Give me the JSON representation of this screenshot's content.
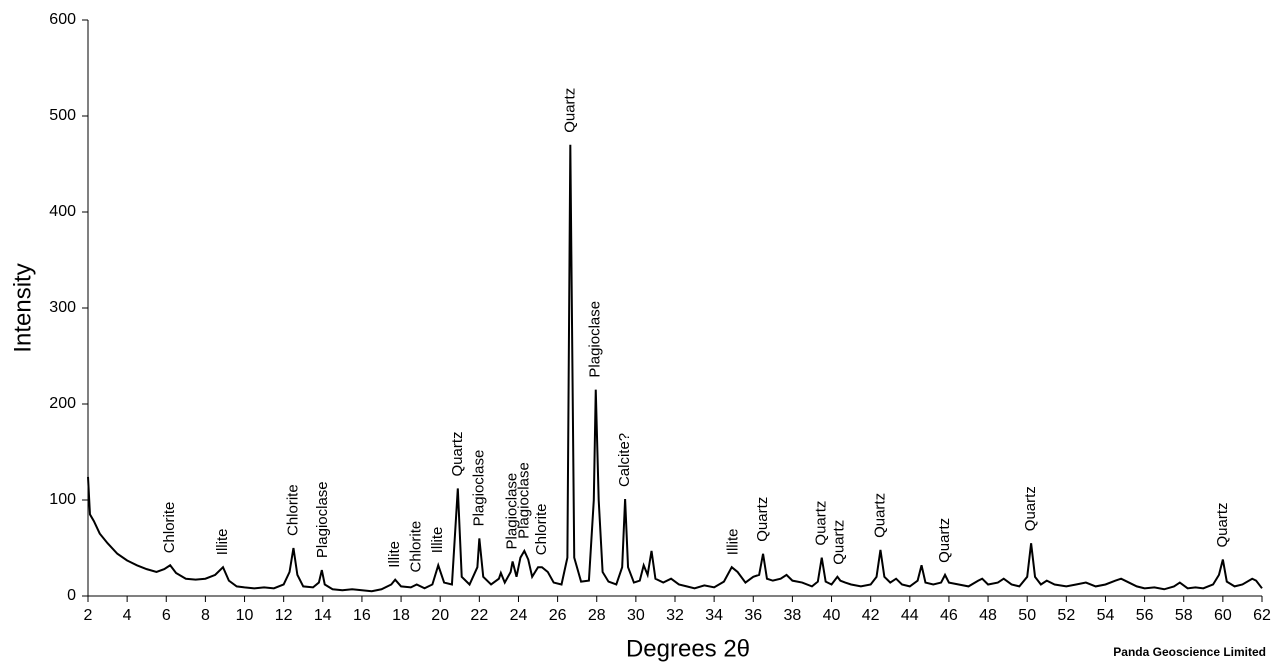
{
  "chart_data": {
    "type": "line",
    "xlabel": "Degrees 2θ",
    "ylabel": "Intensity",
    "credit": "Panda Geoscience Limited",
    "xlim": [
      2,
      62
    ],
    "ylim": [
      0,
      600
    ],
    "xticks": [
      2,
      4,
      6,
      8,
      10,
      12,
      14,
      16,
      18,
      20,
      22,
      24,
      26,
      28,
      30,
      32,
      34,
      36,
      38,
      40,
      42,
      44,
      46,
      48,
      50,
      52,
      54,
      56,
      58,
      60,
      62
    ],
    "yticks": [
      0,
      100,
      200,
      300,
      400,
      500,
      600
    ],
    "series": [
      {
        "color": "#000000",
        "x": [
          2,
          2.1,
          2.3,
          2.6,
          3,
          3.5,
          4,
          4.5,
          5,
          5.5,
          5.9,
          6.2,
          6.5,
          7,
          7.5,
          8,
          8.5,
          8.9,
          9.2,
          9.6,
          10,
          10.5,
          11,
          11.5,
          12,
          12.3,
          12.5,
          12.7,
          13,
          13.5,
          13.8,
          13.95,
          14.1,
          14.5,
          15,
          15.5,
          16,
          16.5,
          17,
          17.5,
          17.7,
          18,
          18.5,
          18.8,
          19.2,
          19.6,
          19.9,
          20.2,
          20.6,
          20.9,
          21.1,
          21.5,
          21.9,
          22,
          22.2,
          22.6,
          23,
          23.1,
          23.3,
          23.6,
          23.7,
          23.9,
          24.1,
          24.3,
          24.5,
          24.7,
          25,
          25.2,
          25.5,
          25.8,
          26.2,
          26.5,
          26.65,
          26.85,
          27.2,
          27.6,
          27.85,
          27.95,
          28.1,
          28.3,
          28.6,
          29,
          29.3,
          29.45,
          29.6,
          29.9,
          30.2,
          30.4,
          30.6,
          30.8,
          31,
          31.4,
          31.8,
          32.2,
          32.6,
          33,
          33.5,
          34,
          34.5,
          34.9,
          35.2,
          35.6,
          36,
          36.3,
          36.5,
          36.7,
          37,
          37.4,
          37.7,
          38,
          38.5,
          39,
          39.3,
          39.5,
          39.7,
          40,
          40.3,
          40.45,
          40.7,
          41,
          41.5,
          42,
          42.3,
          42.5,
          42.7,
          43,
          43.3,
          43.6,
          44,
          44.4,
          44.6,
          44.8,
          45.2,
          45.6,
          45.8,
          46,
          46.5,
          47,
          47.5,
          47.7,
          48,
          48.5,
          48.8,
          49.2,
          49.6,
          50,
          50.2,
          50.4,
          50.7,
          51,
          51.4,
          52,
          52.5,
          53,
          53.5,
          54,
          54.5,
          54.8,
          55.2,
          55.6,
          56,
          56.5,
          57,
          57.5,
          57.8,
          58.2,
          58.6,
          59,
          59.5,
          59.8,
          60,
          60.2,
          60.6,
          61,
          61.5,
          61.7,
          62
        ],
        "values": [
          124,
          85,
          78,
          65,
          55,
          44,
          37,
          32,
          28,
          25,
          28,
          32,
          24,
          18,
          17,
          18,
          22,
          30,
          16,
          10,
          9,
          8,
          9,
          8,
          12,
          25,
          50,
          22,
          10,
          9,
          14,
          27,
          12,
          7,
          6,
          7,
          6,
          5,
          7,
          12,
          17,
          10,
          9,
          12,
          8,
          12,
          32,
          14,
          12,
          112,
          20,
          12,
          30,
          60,
          20,
          12,
          18,
          24,
          14,
          25,
          36,
          20,
          40,
          47,
          38,
          20,
          30,
          30,
          25,
          14,
          12,
          40,
          470,
          40,
          15,
          16,
          100,
          215,
          100,
          25,
          15,
          12,
          30,
          101,
          30,
          14,
          16,
          32,
          22,
          47,
          18,
          14,
          18,
          12,
          10,
          8,
          11,
          9,
          15,
          30,
          25,
          14,
          20,
          22,
          44,
          18,
          16,
          18,
          22,
          16,
          14,
          10,
          15,
          40,
          15,
          12,
          20,
          16,
          14,
          12,
          10,
          12,
          20,
          48,
          20,
          14,
          18,
          12,
          10,
          16,
          32,
          14,
          12,
          14,
          22,
          14,
          12,
          10,
          16,
          18,
          12,
          14,
          18,
          12,
          10,
          20,
          55,
          20,
          12,
          16,
          12,
          10,
          12,
          14,
          10,
          12,
          16,
          18,
          14,
          10,
          8,
          9,
          7,
          10,
          14,
          8,
          9,
          8,
          12,
          22,
          38,
          15,
          10,
          12,
          18,
          16,
          8
        ]
      }
    ],
    "annotations": [
      {
        "x": 6.2,
        "text": "Chlorite"
      },
      {
        "x": 8.9,
        "text": "Illite"
      },
      {
        "x": 12.5,
        "text": "Chlorite"
      },
      {
        "x": 14,
        "text": "Plagioclase"
      },
      {
        "x": 17.7,
        "text": "Illite"
      },
      {
        "x": 18.8,
        "text": "Chlorite"
      },
      {
        "x": 19.9,
        "text": "Illite"
      },
      {
        "x": 20.9,
        "text": "Quartz"
      },
      {
        "x": 22,
        "text": "Plagioclase"
      },
      {
        "x": 23.7,
        "text": "Plagioclase"
      },
      {
        "x": 24.3,
        "text": "Plagioclase"
      },
      {
        "x": 25.2,
        "text": "Chlorite"
      },
      {
        "x": 26.65,
        "text": "Quartz"
      },
      {
        "x": 27.95,
        "text": "Plagioclase"
      },
      {
        "x": 29.45,
        "text": "Calcite?"
      },
      {
        "x": 35,
        "text": "Illite"
      },
      {
        "x": 36.5,
        "text": "Quartz"
      },
      {
        "x": 39.5,
        "text": "Quartz"
      },
      {
        "x": 40.4,
        "text": "Quartz"
      },
      {
        "x": 42.5,
        "text": "Quartz"
      },
      {
        "x": 45.8,
        "text": "Quartz"
      },
      {
        "x": 50.2,
        "text": "Quartz"
      },
      {
        "x": 60,
        "text": "Quartz"
      }
    ]
  }
}
